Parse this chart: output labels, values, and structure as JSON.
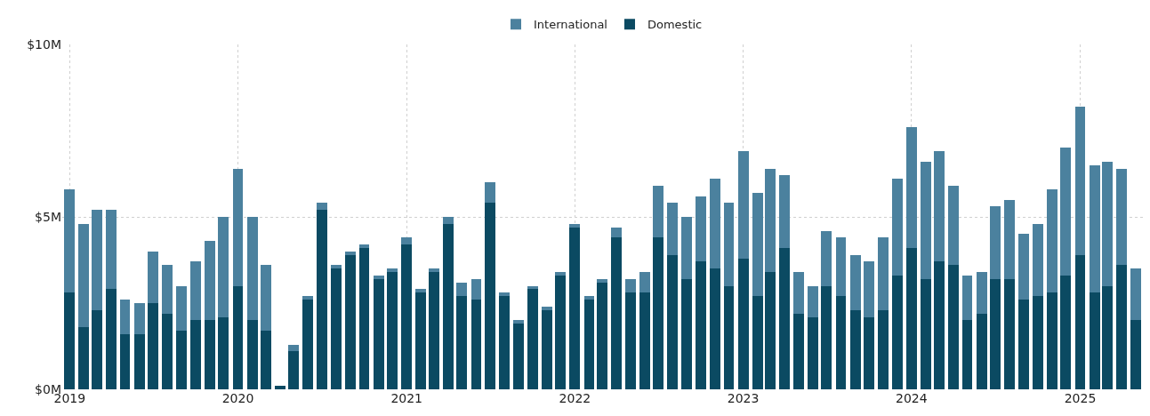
{
  "chart_data": {
    "type": "bar",
    "stacked": true,
    "x": [
      "2019-01",
      "2019-02",
      "2019-03",
      "2019-04",
      "2019-05",
      "2019-06",
      "2019-07",
      "2019-08",
      "2019-09",
      "2019-10",
      "2019-11",
      "2019-12",
      "2020-01",
      "2020-02",
      "2020-03",
      "2020-04",
      "2020-05",
      "2020-06",
      "2020-07",
      "2020-08",
      "2020-09",
      "2020-10",
      "2020-11",
      "2020-12",
      "2021-01",
      "2021-02",
      "2021-03",
      "2021-04",
      "2021-05",
      "2021-06",
      "2021-07",
      "2021-08",
      "2021-09",
      "2021-10",
      "2021-11",
      "2021-12",
      "2022-01",
      "2022-02",
      "2022-03",
      "2022-04",
      "2022-05",
      "2022-06",
      "2022-07",
      "2022-08",
      "2022-09",
      "2022-10",
      "2022-11",
      "2022-12",
      "2023-01",
      "2023-02",
      "2023-03",
      "2023-04",
      "2023-05",
      "2023-06",
      "2023-07",
      "2023-08",
      "2023-09",
      "2023-10",
      "2023-11",
      "2023-12",
      "2024-01",
      "2024-02",
      "2024-03",
      "2024-04",
      "2024-05",
      "2024-06",
      "2024-07",
      "2024-08",
      "2024-09",
      "2024-10",
      "2024-11",
      "2024-12",
      "2025-01",
      "2025-02",
      "2025-03",
      "2025-04",
      "2025-05"
    ],
    "series": [
      {
        "name": "Domestic",
        "color": "#0b4a62",
        "values": [
          2.8,
          1.8,
          2.3,
          2.9,
          1.6,
          1.6,
          2.5,
          2.2,
          1.7,
          2.0,
          2.0,
          2.1,
          3.0,
          2.0,
          1.7,
          0.1,
          1.1,
          2.6,
          5.2,
          3.5,
          3.9,
          4.1,
          3.2,
          3.4,
          4.2,
          2.8,
          3.4,
          4.8,
          2.7,
          2.6,
          5.4,
          2.7,
          1.9,
          2.9,
          2.3,
          3.3,
          4.7,
          2.6,
          3.1,
          4.4,
          2.8,
          2.8,
          4.4,
          3.9,
          3.2,
          3.7,
          3.5,
          3.0,
          3.8,
          2.7,
          3.4,
          4.1,
          2.2,
          2.1,
          3.0,
          2.7,
          2.3,
          2.1,
          2.3,
          3.3,
          4.1,
          3.2,
          3.7,
          3.6,
          2.0,
          2.2,
          3.2,
          3.2,
          2.6,
          2.7,
          2.8,
          3.3,
          3.9,
          2.8,
          3.0,
          3.6,
          2.0
        ]
      },
      {
        "name": "International",
        "color": "#4b819e",
        "values": [
          3.0,
          3.0,
          2.9,
          2.3,
          1.0,
          0.9,
          1.5,
          1.4,
          1.3,
          1.7,
          2.3,
          2.9,
          3.4,
          3.0,
          1.9,
          0.0,
          0.2,
          0.1,
          0.2,
          0.1,
          0.1,
          0.1,
          0.1,
          0.1,
          0.2,
          0.1,
          0.1,
          0.2,
          0.4,
          0.6,
          0.6,
          0.1,
          0.1,
          0.1,
          0.1,
          0.1,
          0.1,
          0.1,
          0.1,
          0.3,
          0.4,
          0.6,
          1.5,
          1.5,
          1.8,
          1.9,
          2.6,
          2.4,
          3.1,
          3.0,
          3.0,
          2.1,
          1.2,
          0.9,
          1.6,
          1.7,
          1.6,
          1.6,
          2.1,
          2.8,
          3.5,
          3.4,
          3.2,
          2.3,
          1.3,
          1.2,
          2.1,
          2.3,
          1.9,
          2.1,
          3.0,
          3.7,
          4.3,
          3.7,
          3.6,
          2.8,
          1.5
        ]
      }
    ],
    "xlim": [
      "2018-12-16",
      "2025-05-17"
    ],
    "xticks": [
      "2019",
      "2020",
      "2021",
      "2022",
      "2023",
      "2024",
      "2025"
    ],
    "ylim": [
      0,
      10
    ],
    "yticks": [
      {
        "value": 0,
        "label": "$0M"
      },
      {
        "value": 5,
        "label": "$5M"
      },
      {
        "value": 10,
        "label": "$10M"
      }
    ],
    "grid": true,
    "legend": "top"
  }
}
